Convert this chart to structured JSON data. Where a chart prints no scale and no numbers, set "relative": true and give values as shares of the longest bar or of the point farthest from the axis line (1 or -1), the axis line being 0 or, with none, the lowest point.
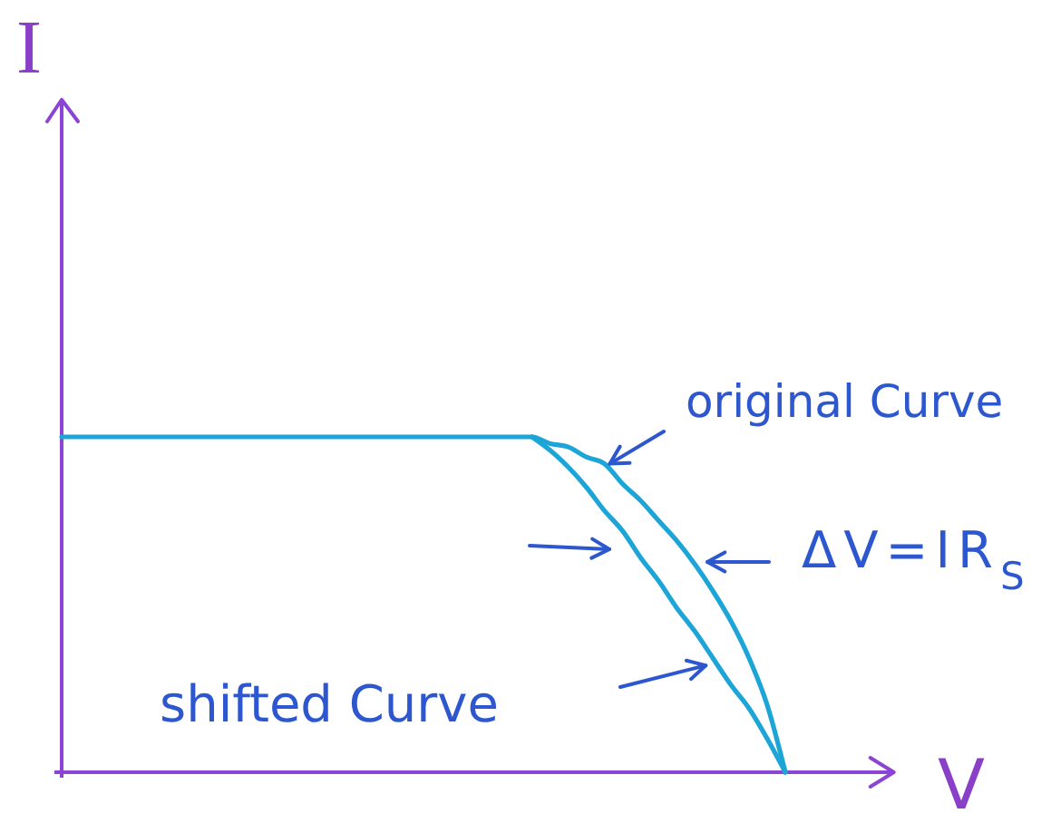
{
  "chart_data": {
    "type": "line",
    "xlabel": "V",
    "ylabel": "I",
    "relative": true,
    "line_style": "solid",
    "categories": [
      null,
      null,
      null,
      null,
      null,
      null,
      null,
      null,
      null,
      null,
      null,
      null,
      null,
      null,
      null,
      null,
      null,
      null,
      null,
      null,
      null,
      null,
      null,
      null,
      null,
      null,
      null,
      null,
      null,
      null,
      null,
      null,
      null,
      null,
      null,
      null,
      null,
      null,
      null,
      null,
      null,
      null,
      null,
      null,
      null,
      null,
      null
    ],
    "series": [
      {
        "color": "#1ca5d6",
        "values": [
          1,
          1,
          1,
          1,
          1,
          1,
          1,
          1,
          1,
          1,
          1,
          1,
          1,
          1,
          1,
          1,
          1,
          1,
          1,
          1,
          1,
          1,
          1,
          1,
          1,
          1,
          1,
          0.98,
          0.97,
          0.94,
          0.92,
          0.86,
          0.81,
          0.75,
          0.69,
          0.62,
          0.54,
          0.45,
          0.34,
          0.2,
          0,
          null,
          null,
          null,
          null,
          null,
          null
        ]
      },
      {
        "color": "#1ca5d6",
        "values": [
          null,
          null,
          null,
          null,
          null,
          null,
          null,
          null,
          null,
          null,
          null,
          null,
          null,
          null,
          null,
          null,
          null,
          null,
          null,
          null,
          null,
          null,
          null,
          null,
          null,
          null,
          1,
          0.96,
          0.91,
          0.85,
          0.78,
          0.72,
          0.64,
          0.57,
          0.49,
          0.42,
          0.34,
          0.26,
          0.19,
          0.1,
          0,
          null,
          null,
          null,
          null,
          null,
          null
        ]
      }
    ],
    "annotations": [
      "original Curve",
      "ΔV=IR$_{S}$",
      "shifted Curve"
    ]
  }
}
